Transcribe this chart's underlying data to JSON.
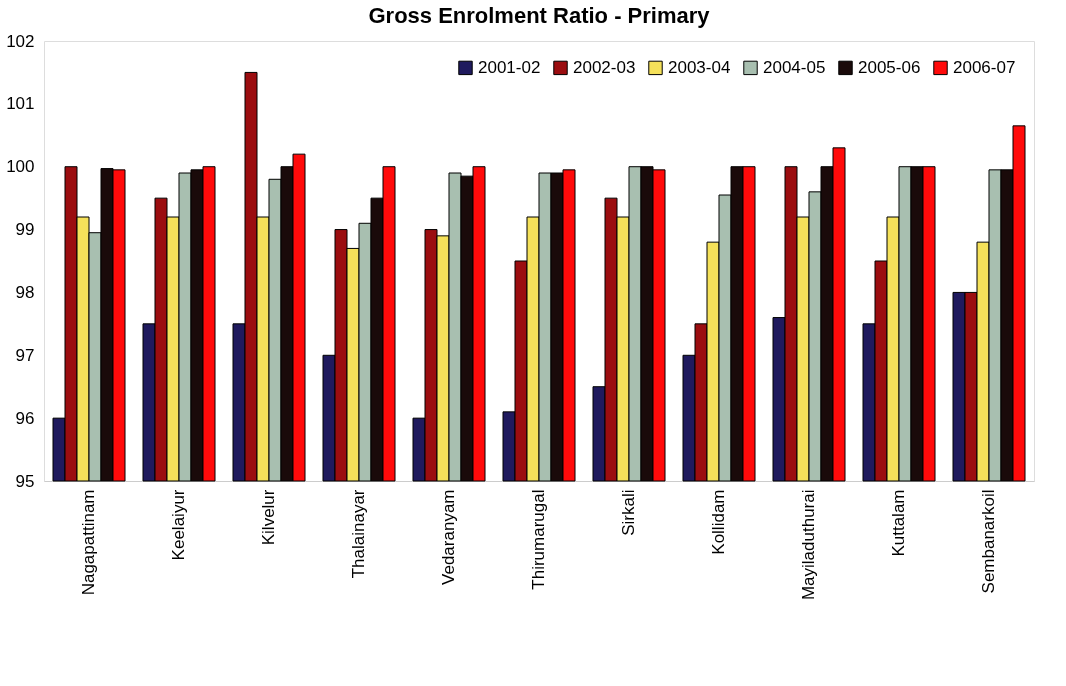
{
  "chart_data": {
    "type": "bar",
    "title": "Gross Enrolment Ratio - Primary",
    "categories": [
      "Nagapattinam",
      "Keelaiyur",
      "Kilvelur",
      "Thalainayar",
      "Vedaranyam",
      "Thirumarugal",
      "Sirkali",
      "Kollidam",
      "Mayiladuthurai",
      "Kuttalam",
      "Sembanarkoil"
    ],
    "series": [
      {
        "name": "2001-02",
        "color": "#1f1a5e",
        "values": [
          96,
          97.5,
          97.5,
          97,
          96,
          96.1,
          96.5,
          97,
          97.6,
          97.5,
          98
        ]
      },
      {
        "name": "2002-03",
        "color": "#9b0d10",
        "values": [
          100,
          99.5,
          101.5,
          99,
          99,
          98.5,
          99.5,
          97.5,
          100,
          98.5,
          98
        ]
      },
      {
        "name": "2003-04",
        "color": "#f5e15a",
        "values": [
          99.2,
          99.2,
          99.2,
          98.7,
          98.9,
          99.2,
          99.2,
          98.8,
          99.2,
          99.2,
          98.8
        ]
      },
      {
        "name": "2004-05",
        "color": "#a8bfb0",
        "values": [
          98.95,
          99.9,
          99.8,
          99.1,
          99.9,
          99.9,
          100,
          99.55,
          99.6,
          100,
          99.95
        ]
      },
      {
        "name": "2005-06",
        "color": "#1a0a0a",
        "values": [
          99.97,
          99.95,
          100,
          99.5,
          99.85,
          99.9,
          100,
          100,
          100,
          100,
          99.95
        ]
      },
      {
        "name": "2006-07",
        "color": "#ff0a0a",
        "values": [
          99.95,
          100,
          100.2,
          100,
          100,
          99.95,
          99.95,
          100,
          100.3,
          100,
          100.65
        ]
      }
    ],
    "ylim": [
      95,
      102
    ],
    "yticks": [
      95,
      96,
      97,
      98,
      99,
      100,
      101,
      102
    ],
    "grid": false,
    "legend": "top right"
  }
}
